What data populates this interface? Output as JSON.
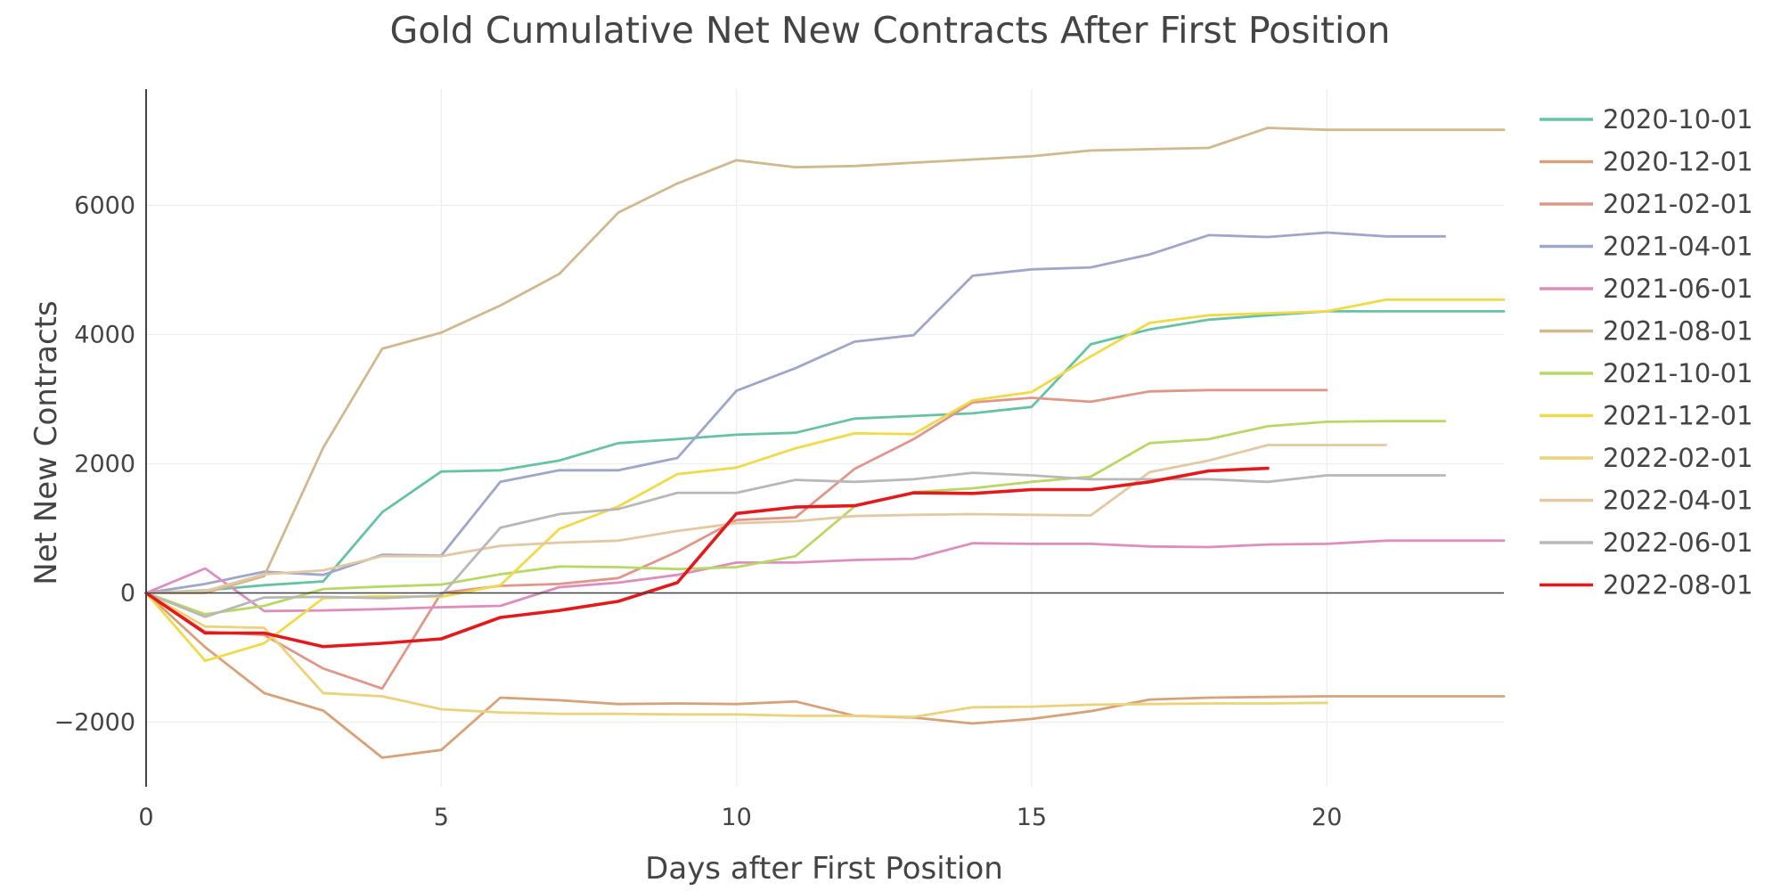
{
  "chart_data": {
    "type": "line",
    "title": "Gold Cumulative Net New Contracts After First Position",
    "xlabel": "Days after First Position",
    "ylabel": "Net New Contracts",
    "xlim": [
      0,
      23
    ],
    "ylim": [
      -3000,
      7800
    ],
    "x_ticks": [
      0,
      5,
      10,
      15,
      20
    ],
    "x_tick_labels": [
      "0",
      "5",
      "10",
      "15",
      "20"
    ],
    "y_ticks": [
      -2000,
      0,
      2000,
      4000,
      6000
    ],
    "y_tick_labels": [
      "−2000",
      "0",
      "2000",
      "4000",
      "6000"
    ],
    "grid": true,
    "legend_position": "right",
    "series": [
      {
        "name": "2020-10-01",
        "color": "#66c2a5",
        "values": [
          0,
          40,
          120,
          180,
          1250,
          1880,
          1900,
          2050,
          2320,
          2380,
          2450,
          2480,
          2700,
          2740,
          2780,
          2880,
          3850,
          4080,
          4230,
          4300,
          4360,
          4360,
          4360,
          4360
        ]
      },
      {
        "name": "2020-12-01",
        "color": "#d7a27a",
        "values": [
          0,
          -840,
          -1550,
          -1820,
          -2550,
          -2430,
          -1620,
          -1660,
          -1720,
          -1710,
          -1720,
          -1680,
          -1900,
          -1930,
          -2020,
          -1950,
          -1830,
          -1650,
          -1620,
          -1610,
          -1600,
          -1600,
          -1600,
          -1600
        ]
      },
      {
        "name": "2021-02-01",
        "color": "#e0978a",
        "values": [
          0,
          -600,
          -650,
          -1170,
          -1480,
          0,
          110,
          140,
          230,
          640,
          1130,
          1170,
          1920,
          2380,
          2950,
          3020,
          2960,
          3120,
          3140,
          3140,
          3140
        ]
      },
      {
        "name": "2021-04-01",
        "color": "#9ea6c9",
        "values": [
          0,
          140,
          330,
          280,
          590,
          580,
          1720,
          1900,
          1900,
          2090,
          3130,
          3480,
          3890,
          3990,
          4910,
          5010,
          5040,
          5240,
          5540,
          5510,
          5580,
          5520,
          5520
        ]
      },
      {
        "name": "2021-06-01",
        "color": "#dd8ebf",
        "values": [
          0,
          380,
          -280,
          -270,
          -250,
          -220,
          -200,
          90,
          160,
          280,
          470,
          470,
          510,
          530,
          770,
          760,
          760,
          720,
          710,
          750,
          760,
          810,
          810,
          810
        ]
      },
      {
        "name": "2021-08-01",
        "color": "#d0b88f",
        "values": [
          0,
          0,
          260,
          2250,
          3780,
          4030,
          4450,
          4940,
          5890,
          6340,
          6700,
          6590,
          6610,
          6660,
          6710,
          6760,
          6850,
          6870,
          6890,
          7200,
          7170,
          7170,
          7170,
          7170
        ]
      },
      {
        "name": "2021-10-01",
        "color": "#b7d865",
        "values": [
          0,
          -330,
          -200,
          60,
          100,
          130,
          290,
          410,
          400,
          370,
          400,
          570,
          1340,
          1560,
          1620,
          1720,
          1800,
          2320,
          2380,
          2580,
          2650,
          2660,
          2660
        ]
      },
      {
        "name": "2021-12-01",
        "color": "#f0da48",
        "values": [
          0,
          -1050,
          -780,
          -80,
          -50,
          -60,
          120,
          990,
          1340,
          1840,
          1940,
          2240,
          2470,
          2460,
          2980,
          3110,
          3660,
          4180,
          4300,
          4330,
          4360,
          4540,
          4540,
          4540
        ]
      },
      {
        "name": "2022-02-01",
        "color": "#ecd27a",
        "values": [
          0,
          -520,
          -540,
          -1550,
          -1600,
          -1800,
          -1850,
          -1870,
          -1870,
          -1880,
          -1880,
          -1900,
          -1900,
          -1920,
          -1770,
          -1760,
          -1730,
          -1720,
          -1710,
          -1710,
          -1700
        ]
      },
      {
        "name": "2022-04-01",
        "color": "#e2c8a3",
        "values": [
          0,
          30,
          290,
          350,
          570,
          570,
          730,
          780,
          810,
          960,
          1080,
          1110,
          1190,
          1210,
          1220,
          1210,
          1200,
          1870,
          2050,
          2290,
          2290,
          2290
        ]
      },
      {
        "name": "2022-06-01",
        "color": "#b8b8b8",
        "values": [
          0,
          -370,
          -70,
          -60,
          -80,
          -40,
          1010,
          1220,
          1300,
          1550,
          1550,
          1750,
          1720,
          1760,
          1860,
          1820,
          1760,
          1760,
          1760,
          1720,
          1820,
          1820,
          1820
        ]
      },
      {
        "name": "2022-08-01",
        "color": "#e31a1c",
        "values": [
          0,
          -620,
          -620,
          -830,
          -780,
          -710,
          -380,
          -270,
          -130,
          160,
          1230,
          1330,
          1350,
          1550,
          1540,
          1600,
          1600,
          1720,
          1890,
          1930
        ]
      }
    ]
  }
}
